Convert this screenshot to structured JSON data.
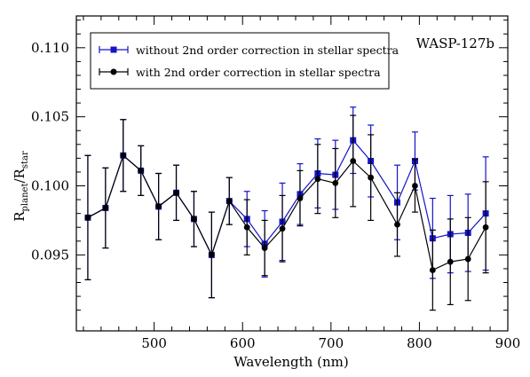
{
  "chart_data": {
    "type": "line",
    "annotation": "WASP-127b",
    "xlabel": "Wavelength (nm)",
    "ylabel": {
      "base": "R",
      "sub1": "planet",
      "sep": "/R",
      "sub2": "star"
    },
    "xlim": [
      412,
      900
    ],
    "ylim": [
      0.0895,
      0.1123
    ],
    "xticks": [
      500,
      600,
      700,
      800,
      900
    ],
    "yticks": [
      0.095,
      0.1,
      0.105,
      0.11
    ],
    "ytick_labels": [
      "0.095",
      "0.100",
      "0.105",
      "0.110"
    ],
    "grid": false,
    "legend_position": "top-left",
    "series": [
      {
        "name": "with 2nd order correction in stellar spectra",
        "color": "#000000",
        "marker": "circle",
        "x": [
          425,
          445,
          465,
          485,
          505,
          525,
          545,
          565,
          585,
          605,
          625,
          645,
          665,
          685,
          705,
          725,
          745,
          775,
          795,
          815,
          835,
          855,
          875
        ],
        "y": [
          0.0977,
          0.0984,
          0.1022,
          0.1011,
          0.0985,
          0.0995,
          0.0976,
          0.095,
          0.0989,
          0.097,
          0.0955,
          0.0969,
          0.0991,
          0.1005,
          0.1002,
          0.1018,
          0.1006,
          0.0972,
          0.1,
          0.0939,
          0.0945,
          0.0947,
          0.097
        ],
        "yerr": [
          0.0045,
          0.0029,
          0.0026,
          0.0018,
          0.0024,
          0.002,
          0.002,
          0.0031,
          0.0017,
          0.002,
          0.002,
          0.0024,
          0.002,
          0.0025,
          0.0025,
          0.0033,
          0.0031,
          0.0023,
          0.0019,
          0.0029,
          0.0031,
          0.003,
          0.0033
        ]
      },
      {
        "name": "without 2nd order correction in stellar spectra",
        "color": "#1414c8",
        "marker": "square",
        "x": [
          425,
          445,
          465,
          485,
          505,
          525,
          545,
          565,
          585,
          605,
          625,
          645,
          665,
          685,
          705,
          725,
          745,
          775,
          795,
          815,
          835,
          855,
          875
        ],
        "y": [
          0.0977,
          0.0984,
          0.1022,
          0.1011,
          0.0985,
          0.0995,
          0.0976,
          0.095,
          0.0989,
          0.0976,
          0.0958,
          0.0974,
          0.0994,
          0.1009,
          0.1008,
          0.1033,
          0.1018,
          0.0988,
          0.1018,
          0.0962,
          0.0965,
          0.0966,
          0.098
        ],
        "yerr": [
          0.0045,
          0.0029,
          0.0026,
          0.0018,
          0.0024,
          0.002,
          0.002,
          0.0031,
          0.0017,
          0.002,
          0.0024,
          0.0028,
          0.0022,
          0.0025,
          0.0025,
          0.0024,
          0.0026,
          0.0027,
          0.0021,
          0.0029,
          0.0028,
          0.0028,
          0.0041
        ]
      }
    ]
  }
}
